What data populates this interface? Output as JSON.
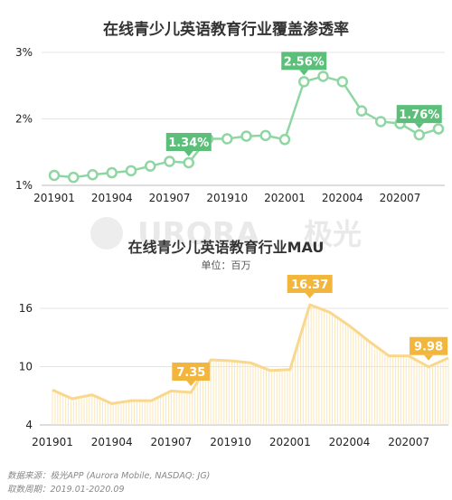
{
  "charts": [
    {
      "title": "在线青少儿英语教育行业覆盖渗透率",
      "type": "line",
      "categories": [
        "201901",
        "201902",
        "201903",
        "201904",
        "201905",
        "201906",
        "201907",
        "201908",
        "201909",
        "201910",
        "201911",
        "201912",
        "202001",
        "202002",
        "202003",
        "202004",
        "202005",
        "202006",
        "202007",
        "202008",
        "202009"
      ],
      "tick_labels": [
        "201901",
        "201904",
        "201907",
        "201910",
        "202001",
        "202004",
        "202007"
      ],
      "values": [
        1.15,
        1.12,
        1.16,
        1.19,
        1.22,
        1.29,
        1.36,
        1.34,
        1.7,
        1.7,
        1.74,
        1.75,
        1.69,
        2.56,
        2.64,
        2.56,
        2.12,
        1.96,
        1.93,
        1.76,
        1.85
      ],
      "y_ticks": [
        "1%",
        "2%",
        "3%"
      ],
      "ylim": [
        1,
        3
      ],
      "callouts": [
        {
          "index": 7,
          "label": "1.34%"
        },
        {
          "index": 13,
          "label": "2.56%"
        },
        {
          "index": 19,
          "label": "1.76%"
        }
      ],
      "color": "#8fd6a3",
      "callout_color": "#5bbf7a"
    },
    {
      "title": "在线青少儿英语教育行业MAU",
      "subtitle": "单位：百万",
      "type": "area",
      "categories": [
        "201901",
        "201902",
        "201903",
        "201904",
        "201905",
        "201906",
        "201907",
        "201908",
        "201909",
        "201910",
        "201911",
        "201912",
        "202001",
        "202002",
        "202003",
        "202004",
        "202005",
        "202006",
        "202007",
        "202008",
        "202009"
      ],
      "tick_labels": [
        "201901",
        "201904",
        "201907",
        "201910",
        "202001",
        "202004",
        "202007"
      ],
      "values": [
        7.6,
        6.7,
        7.1,
        6.2,
        6.5,
        6.5,
        7.5,
        7.35,
        10.7,
        10.6,
        10.4,
        9.6,
        9.7,
        16.37,
        15.6,
        14.2,
        12.6,
        11.1,
        11.1,
        9.98,
        10.9
      ],
      "y_ticks": [
        "4",
        "10",
        "16"
      ],
      "ylim": [
        4,
        16
      ],
      "callouts": [
        {
          "index": 7,
          "label": "7.35"
        },
        {
          "index": 13,
          "label": "16.37"
        },
        {
          "index": 19,
          "label": "9.98"
        }
      ],
      "color": "#f9d88e",
      "callout_color": "#f2b63d"
    }
  ],
  "watermark": {
    "text": "URORA",
    "cn": "极光"
  },
  "source": {
    "line1": "数据来源：极光APP (Aurora Mobile, NASDAQ: JG)",
    "line2": "取数周期：2019.01-2020.09"
  }
}
